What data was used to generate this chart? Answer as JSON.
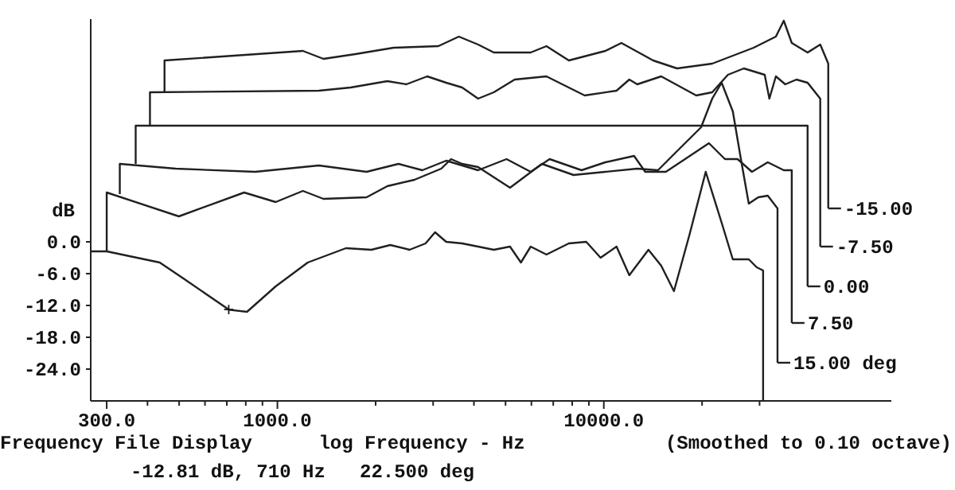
{
  "chart_data": {
    "type": "line",
    "ylabel": "dB",
    "xlabel": "log Frequency - Hz",
    "log": "x",
    "xlim": [
      268,
      76000
    ],
    "ylim": [
      -30,
      42
    ],
    "xticks": [
      {
        "value": 300,
        "label": "300.0"
      },
      {
        "value": 400,
        "label": null
      },
      {
        "value": 500,
        "label": null
      },
      {
        "value": 600,
        "label": null
      },
      {
        "value": 700,
        "label": null
      },
      {
        "value": 800,
        "label": null
      },
      {
        "value": 900,
        "label": null
      },
      {
        "value": 1000,
        "label": "1000.0"
      },
      {
        "value": 2000,
        "label": null
      },
      {
        "value": 3000,
        "label": null
      },
      {
        "value": 4000,
        "label": null
      },
      {
        "value": 5000,
        "label": null
      },
      {
        "value": 6000,
        "label": null
      },
      {
        "value": 7000,
        "label": null
      },
      {
        "value": 8000,
        "label": null
      },
      {
        "value": 9000,
        "label": null
      },
      {
        "value": 10000,
        "label": "10000.0"
      },
      {
        "value": 20000,
        "label": null
      },
      {
        "value": 30000,
        "label": null
      }
    ],
    "yticks": [
      {
        "value": 0,
        "label": "0.0"
      },
      {
        "value": -6,
        "label": "-6.0"
      },
      {
        "value": -12,
        "label": "-12.0"
      },
      {
        "value": -18,
        "label": "-18.0"
      },
      {
        "value": -24,
        "label": "-24.0"
      }
    ],
    "grid": false,
    "marker": "none",
    "line_style": "solid",
    "series": [
      {
        "color": "#202020",
        "x": [
          268,
          300,
          436,
          515,
          710,
          807,
          988,
          1239,
          1622,
          1941,
          2218,
          2541,
          2844,
          3041,
          3290,
          3681,
          4120,
          4603,
          5160,
          5572,
          5970,
          6671,
          7812,
          8835,
          9773,
          10940,
          11970,
          13700,
          14990,
          16400,
          18330,
          20520,
          22960,
          24840,
          27800,
          29400,
          30760,
          30760
        ],
        "values": [
          -1.8,
          -1.8,
          -3.9,
          -6.9,
          -12.8,
          -13.2,
          -8.4,
          -3.9,
          -1.2,
          -1.5,
          -0.6,
          -1.5,
          -0.3,
          1.8,
          0,
          -0.3,
          -0.9,
          -1.5,
          -0.9,
          -3.9,
          -0.9,
          -2.4,
          -0.3,
          0,
          -3,
          -0.9,
          -6.3,
          -1.5,
          -4.5,
          -9.3,
          1.5,
          13.2,
          3.6,
          -3.3,
          -3.3,
          -4.8,
          -5.4,
          -30
        ]
      },
      {
        "color": "#202020",
        "x": [
          300,
          300,
          499,
          791,
          988,
          1197,
          1384,
          1876,
          2172,
          2630,
          3177,
          3404,
          3681,
          4120,
          5160,
          6460,
          8080,
          10110,
          12660,
          14650,
          16760,
          19860,
          21480,
          22960,
          24840,
          26300,
          27800,
          29730,
          31790,
          34050,
          34050
        ],
        "values": [
          -1.8,
          9.3,
          4.8,
          9.3,
          7.5,
          9.6,
          8.1,
          8.4,
          10.5,
          11.7,
          13.8,
          15.6,
          14.7,
          14.1,
          10.2,
          14.7,
          12.6,
          13.2,
          13.8,
          13.5,
          17.1,
          21.6,
          27,
          30,
          24.6,
          15.6,
          7.2,
          8.4,
          8.7,
          6.3,
          -22.8
        ]
      },
      {
        "color": "#202020",
        "x": [
          329,
          329,
          488,
          855,
          1340,
          1876,
          2350,
          2780,
          3290,
          4120,
          5035,
          5970,
          6823,
          8547,
          10110,
          12380,
          13390,
          15490,
          17740,
          20990,
          23500,
          25690,
          28430,
          31790,
          35590,
          37650,
          37650
        ],
        "values": [
          9,
          14.7,
          13.8,
          13.2,
          14.4,
          13.2,
          14.7,
          13.5,
          15.3,
          13.5,
          15.6,
          13.2,
          15.6,
          13.5,
          15,
          16.2,
          13.2,
          13.2,
          15.6,
          18.6,
          15.6,
          15.6,
          13.2,
          15,
          13.5,
          13.5,
          -15.3
        ]
      },
      {
        "color": "#202020",
        "x": [
          368,
          368,
          42100,
          42100
        ],
        "values": [
          14.7,
          21.9,
          21.9,
          -8.4
        ]
      },
      {
        "color": "#202020",
        "x": [
          407,
          407,
          1340,
          1676,
          2172,
          2483,
          2877,
          3290,
          3681,
          4120,
          4603,
          5333,
          6671,
          8735,
          10940,
          11970,
          12660,
          14990,
          19190,
          21480,
          24000,
          26850,
          31110,
          32150,
          33660,
          35970,
          38920,
          42100,
          46030,
          46030
        ],
        "values": [
          21.9,
          28.2,
          28.5,
          29.1,
          30.3,
          29.7,
          31.2,
          30,
          29.1,
          27,
          28.2,
          30.6,
          31.2,
          27.6,
          28.5,
          30.6,
          29.7,
          31.2,
          27.6,
          28.2,
          31.5,
          32.7,
          31.5,
          27,
          31.2,
          29.7,
          30.6,
          30,
          27,
          -0.9
        ]
      },
      {
        "color": "#202020",
        "x": [
          451,
          451,
          1197,
          1384,
          1734,
          2270,
          3112,
          3597,
          4120,
          4603,
          5970,
          6671,
          7812,
          10110,
          11320,
          14160,
          16760,
          21480,
          28770,
          33660,
          35590,
          37650,
          42100,
          46030,
          48710,
          48710
        ],
        "values": [
          28.2,
          34.2,
          36,
          34.5,
          35.4,
          36.6,
          36.9,
          38.7,
          37.2,
          35.7,
          35.7,
          36.9,
          34.2,
          36,
          37.5,
          34.2,
          32.7,
          33.6,
          36.6,
          38.7,
          41.7,
          37.5,
          35.7,
          37.2,
          33.6,
          6.3
        ]
      }
    ],
    "annotations": [
      {
        "text": "-15.00",
        "x": 48710,
        "y": 6.3
      },
      {
        "text": "-7.50",
        "x": 46030,
        "y": -0.9
      },
      {
        "text": "0.00",
        "x": 42100,
        "y": -8.4
      },
      {
        "text": "7.50",
        "x": 37650,
        "y": -15.3
      },
      {
        "text": "15.00 deg",
        "x": 34050,
        "y": -22.8
      },
      {
        "text": "+",
        "x": 710,
        "y": -12.8
      },
      "Frequency File Display",
      "(Smoothed to 0.10 octave)",
      "-12.81 dB, 710 Hz   22.500 deg"
    ]
  }
}
